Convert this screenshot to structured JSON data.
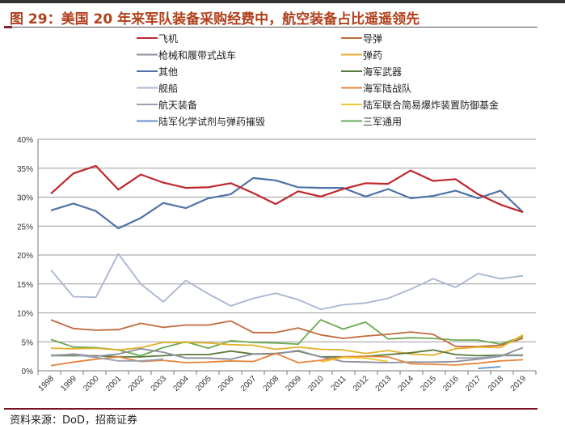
{
  "header": {
    "title": "图 29：美国 20 年来军队装备采购经费中，航空装备占比遥遥领先"
  },
  "footer": {
    "source": "资料来源：DoD，招商证券"
  },
  "chart_data": {
    "type": "line",
    "title": "图 29：美国 20 年来军队装备采购经费中，航空装备占比遥遥领先",
    "xlabel": "",
    "ylabel": "",
    "ylim": [
      0,
      40
    ],
    "yticks": [
      "0%",
      "5%",
      "10%",
      "15%",
      "20%",
      "25%",
      "30%",
      "35%",
      "40%"
    ],
    "grid": true,
    "legend_placement": "top",
    "x": [
      "1998",
      "1999",
      "2000",
      "2001",
      "2002",
      "2003",
      "2004",
      "2005",
      "2006",
      "2007",
      "2008",
      "2009",
      "2010",
      "2011",
      "2012",
      "2013",
      "2014",
      "2015",
      "2016",
      "2017",
      "2018",
      "2019"
    ],
    "series": [
      {
        "name": "飞机",
        "color": "#c0272d",
        "values": [
          30.6,
          34.1,
          35.4,
          31.3,
          33.9,
          32.5,
          31.6,
          31.7,
          32.4,
          30.7,
          28.8,
          31.0,
          30.1,
          31.4,
          32.4,
          32.3,
          34.6,
          32.8,
          33.1,
          30.5,
          28.7,
          27.4
        ]
      },
      {
        "name": "导弹",
        "color": "#c06a3c",
        "values": [
          8.8,
          7.3,
          7.0,
          7.1,
          8.2,
          7.5,
          7.9,
          7.9,
          8.6,
          6.6,
          6.6,
          7.4,
          6.2,
          5.6,
          6.0,
          6.3,
          6.7,
          6.3,
          4.2,
          4.2,
          4.4,
          5.6
        ]
      },
      {
        "name": "枪械和履带式战车",
        "color": "#8c8f9c",
        "values": [
          2.6,
          2.9,
          2.5,
          2.9,
          3.8,
          3.2,
          2.2,
          2.2,
          2.0,
          2.9,
          2.9,
          3.5,
          2.4,
          1.6,
          1.5,
          1.4,
          1.5,
          1.5,
          1.6,
          2.0,
          2.5,
          4.0
        ]
      },
      {
        "name": "弹药",
        "color": "#e3b12a",
        "values": [
          3.9,
          3.8,
          3.9,
          3.6,
          4.0,
          4.9,
          4.9,
          4.8,
          4.5,
          4.4,
          3.7,
          4.1,
          3.7,
          3.6,
          3.0,
          3.5,
          2.9,
          2.7,
          3.8,
          4.1,
          4.0,
          6.2
        ]
      },
      {
        "name": "其他",
        "color": "#4f72a8",
        "values": [
          27.7,
          28.9,
          27.6,
          24.6,
          26.4,
          29.0,
          28.1,
          29.8,
          30.5,
          33.3,
          32.9,
          31.7,
          31.6,
          31.6,
          30.1,
          31.4,
          29.8,
          30.2,
          31.1,
          29.8,
          31.1,
          27.4
        ]
      },
      {
        "name": "海军武器",
        "color": "#5a7a3c",
        "values": [
          2.6,
          2.6,
          2.6,
          2.4,
          2.4,
          2.6,
          2.8,
          2.8,
          3.4,
          2.9,
          3.0,
          3.4,
          2.4,
          2.4,
          2.5,
          2.8,
          3.1,
          3.6,
          2.8,
          2.6,
          2.7,
          2.7
        ]
      },
      {
        "name": "舰船",
        "color": "#a8b4d0",
        "values": [
          17.4,
          12.8,
          12.7,
          20.2,
          15.0,
          11.9,
          15.6,
          13.3,
          11.2,
          12.5,
          13.4,
          12.3,
          10.6,
          11.4,
          11.7,
          12.5,
          14.1,
          15.9,
          14.4,
          16.8,
          15.9,
          16.4
        ]
      },
      {
        "name": "海军陆战队",
        "color": "#e8843c",
        "values": [
          0.9,
          1.5,
          2.0,
          2.4,
          1.6,
          1.8,
          1.4,
          1.5,
          1.7,
          1.6,
          3.0,
          1.4,
          1.8,
          2.4,
          2.5,
          2.4,
          1.2,
          1.1,
          1.0,
          1.3,
          1.7,
          1.9
        ]
      },
      {
        "name": "航天装备",
        "color": "#9aa0b0",
        "values": [
          2.7,
          2.8,
          2.3,
          1.7,
          1.7,
          2.0,
          null,
          null,
          null,
          null,
          null,
          null,
          null,
          null,
          null,
          null,
          null,
          null,
          2.2,
          2.2,
          2.6,
          2.6
        ]
      },
      {
        "name": "陆军联合简易爆炸装置防御基金",
        "color": "#f0c830",
        "values": [
          null,
          null,
          null,
          null,
          null,
          null,
          null,
          null,
          null,
          null,
          null,
          null,
          1.5,
          2.3,
          2.2,
          1.6,
          null,
          null,
          null,
          null,
          null,
          null
        ]
      },
      {
        "name": "陆军化学试剂与弹药摧毁",
        "color": "#6090c8",
        "values": [
          null,
          null,
          null,
          null,
          null,
          null,
          null,
          null,
          null,
          null,
          null,
          null,
          null,
          null,
          null,
          null,
          null,
          null,
          null,
          0.4,
          0.7,
          null
        ]
      },
      {
        "name": "三军通用",
        "color": "#6aaa50",
        "values": [
          5.4,
          4.1,
          4.0,
          3.6,
          2.6,
          4.0,
          5.0,
          3.9,
          5.2,
          4.9,
          4.8,
          4.6,
          8.8,
          7.2,
          8.4,
          5.5,
          5.7,
          5.6,
          5.3,
          5.3,
          4.6,
          5.9
        ]
      }
    ]
  }
}
